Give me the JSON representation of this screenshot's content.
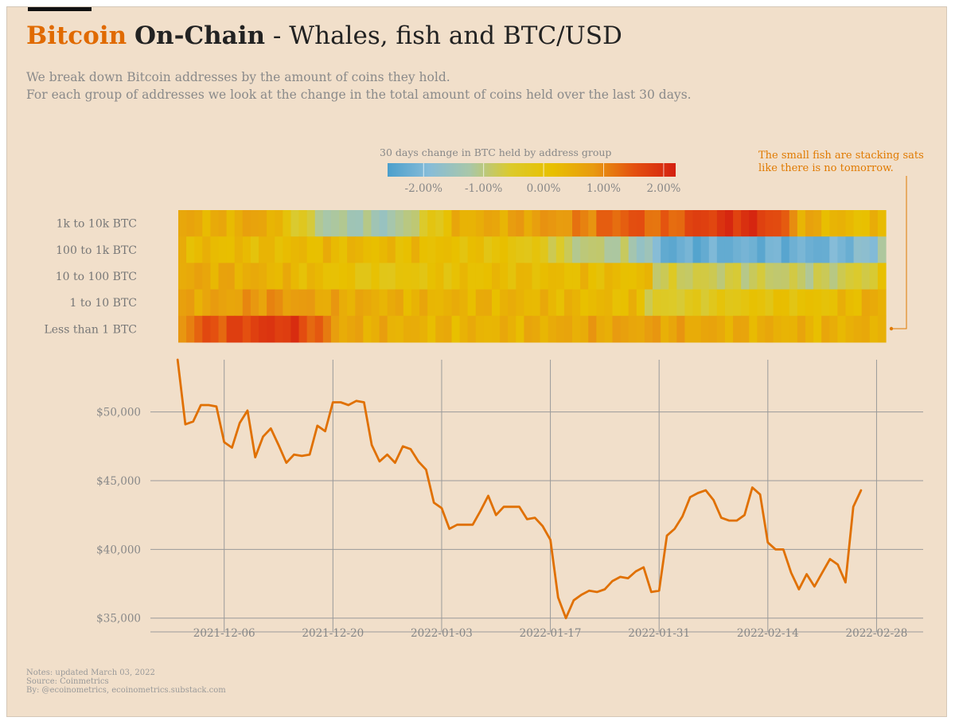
{
  "header": {
    "title_brand": "Bitcoin",
    "title_bold": "On-Chain",
    "title_rest": " - Whales, fish and BTC/USD",
    "subtitle_line1": "We break down Bitcoin addresses by the amount of coins they hold.",
    "subtitle_line2": "For each group of addresses we look at the change in the total amount of coins held over the last 30 days."
  },
  "notes": {
    "line1": "Notes: updated March 03, 2022",
    "line2": "Source: Coinmetrics",
    "line3": "By: @ecoinometrics, ecoinometrics.substack.com"
  },
  "colors": {
    "background": "#f1dfca",
    "accent": "#e06a00",
    "line": "#e07000",
    "grid": "#9a9a9a"
  },
  "chart_data": [
    {
      "type": "heatmap",
      "title": "30 days change in BTC held by address group",
      "rows": [
        "1k to 10k BTC",
        "100 to 1k BTC",
        "10 to 100 BTC",
        "1 to 10 BTC",
        "Less than 1 BTC"
      ],
      "colorbar": {
        "range": [
          -2.6,
          2.2
        ],
        "ticks": [
          -2.0,
          -1.0,
          0.0,
          1.0,
          2.0
        ],
        "tick_labels": [
          "-2.00%",
          "-1.00%",
          "0.00%",
          "1.00%",
          "2.00%"
        ],
        "stops": [
          "#4b9fcc",
          "#86bcd8",
          "#a9c7a8",
          "#dcca2a",
          "#e8c000",
          "#e89a10",
          "#e45010",
          "#d42010"
        ]
      },
      "x_range": [
        -7,
        88
      ],
      "columns": 88,
      "row_keypoints": [
        [
          [
            0,
            0.6
          ],
          [
            5,
            0.4
          ],
          [
            10,
            0.7
          ],
          [
            14,
            -0.3
          ],
          [
            18,
            -1.2
          ],
          [
            26,
            -1.4
          ],
          [
            30,
            -0.6
          ],
          [
            34,
            0.4
          ],
          [
            40,
            0.6
          ],
          [
            48,
            0.9
          ],
          [
            53,
            1.3
          ],
          [
            56,
            1.5
          ],
          [
            60,
            1.2
          ],
          [
            64,
            1.7
          ],
          [
            70,
            2.0
          ],
          [
            74,
            1.6
          ],
          [
            77,
            0.6
          ],
          [
            80,
            0.4
          ],
          [
            84,
            0.2
          ],
          [
            88,
            0.3
          ]
        ],
        [
          [
            0,
            0.3
          ],
          [
            10,
            0.2
          ],
          [
            20,
            0.3
          ],
          [
            30,
            0.2
          ],
          [
            40,
            0.0
          ],
          [
            45,
            -0.3
          ],
          [
            48,
            -0.9
          ],
          [
            55,
            -1.1
          ],
          [
            58,
            -1.6
          ],
          [
            60,
            -2.3
          ],
          [
            70,
            -2.2
          ],
          [
            80,
            -2.2
          ],
          [
            86,
            -1.8
          ],
          [
            88,
            -0.5
          ]
        ],
        [
          [
            0,
            0.6
          ],
          [
            8,
            0.5
          ],
          [
            14,
            0.3
          ],
          [
            20,
            0.1
          ],
          [
            24,
            -0.2
          ],
          [
            30,
            0.0
          ],
          [
            38,
            0.2
          ],
          [
            44,
            0.2
          ],
          [
            58,
            0.2
          ],
          [
            59,
            -0.7
          ],
          [
            70,
            -0.8
          ],
          [
            80,
            -0.9
          ],
          [
            86,
            -0.5
          ],
          [
            88,
            0.2
          ]
        ],
        [
          [
            0,
            0.6
          ],
          [
            6,
            0.7
          ],
          [
            10,
            0.9
          ],
          [
            14,
            0.8
          ],
          [
            18,
            0.6
          ],
          [
            24,
            0.5
          ],
          [
            30,
            0.4
          ],
          [
            40,
            0.4
          ],
          [
            57,
            0.2
          ],
          [
            58,
            -0.6
          ],
          [
            66,
            -0.3
          ],
          [
            72,
            0.0
          ],
          [
            80,
            0.1
          ],
          [
            88,
            0.6
          ]
        ],
        [
          [
            0,
            0.9
          ],
          [
            2,
            1.4
          ],
          [
            6,
            1.6
          ],
          [
            10,
            1.8
          ],
          [
            13,
            1.9
          ],
          [
            16,
            1.5
          ],
          [
            20,
            0.6
          ],
          [
            30,
            0.4
          ],
          [
            40,
            0.4
          ],
          [
            50,
            0.6
          ],
          [
            58,
            0.7
          ],
          [
            70,
            0.5
          ],
          [
            80,
            0.4
          ],
          [
            87,
            0.5
          ],
          [
            88,
            1.4
          ]
        ]
      ]
    },
    {
      "type": "line",
      "series_name": "BTC/USD",
      "x_start": "2021-11-30",
      "x_ticks": [
        6,
        20,
        34,
        48,
        62,
        76,
        90
      ],
      "x_tick_labels": [
        "2021-12-06",
        "2021-12-20",
        "2022-01-03",
        "2022-01-17",
        "2022-01-31",
        "2022-02-14",
        "2022-02-28"
      ],
      "xlim": [
        -3.5,
        96
      ],
      "ylim": [
        34000,
        53800
      ],
      "y_ticks": [
        35000,
        40000,
        45000,
        50000
      ],
      "y_tick_labels": [
        "$35,000",
        "$40,000",
        "$45,000",
        "$50,000"
      ],
      "grid": true,
      "values": [
        53800,
        49100,
        49300,
        50500,
        50500,
        50400,
        47800,
        47400,
        49200,
        50100,
        46700,
        48200,
        48800,
        47600,
        46300,
        46900,
        46800,
        46900,
        49000,
        48600,
        50700,
        50700,
        50500,
        50800,
        50700,
        47600,
        46400,
        46900,
        46300,
        47500,
        47300,
        46400,
        45800,
        43400,
        43000,
        41500,
        41800,
        41800,
        41800,
        42800,
        43900,
        42500,
        43100,
        43100,
        43100,
        42200,
        42300,
        41700,
        40700,
        36500,
        35000,
        36300,
        36700,
        37000,
        36900,
        37100,
        37700,
        38000,
        37900,
        38400,
        38700,
        36900,
        37000,
        41000,
        41500,
        42400,
        43800,
        44100,
        44300,
        43600,
        42300,
        42100,
        42100,
        42500,
        44500,
        44000,
        40500,
        40000,
        40000,
        38300,
        37100,
        38200,
        37300,
        38300,
        39300,
        38900,
        37600,
        43100,
        44300
      ]
    }
  ],
  "annotation": {
    "line1": "The small fish are stacking sats",
    "line2": "like there is no tomorrow."
  }
}
